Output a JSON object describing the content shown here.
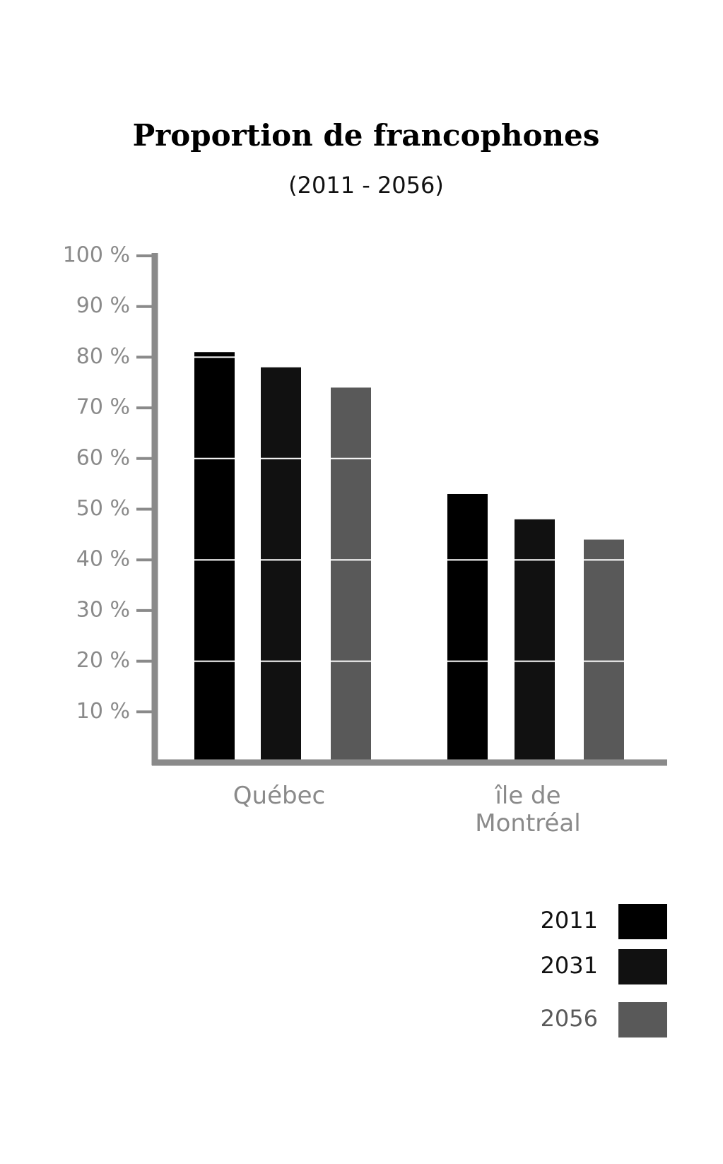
{
  "chart_data": {
    "type": "bar",
    "title": "Proportion de francophones",
    "subtitle": "(2011 - 2056)",
    "categories": [
      "Québec",
      "île de Montréal"
    ],
    "series": [
      {
        "name": "2011",
        "color": "#000000",
        "values": [
          81,
          53
        ]
      },
      {
        "name": "2031",
        "color": "#111111",
        "values": [
          78,
          48
        ]
      },
      {
        "name": "2056",
        "color": "#595959",
        "values": [
          74,
          44
        ]
      }
    ],
    "ylim": [
      0,
      100
    ],
    "yticks": [
      {
        "value": 10,
        "label": "10 %"
      },
      {
        "value": 20,
        "label": "20 %"
      },
      {
        "value": 30,
        "label": "30 %"
      },
      {
        "value": 40,
        "label": "40 %"
      },
      {
        "value": 50,
        "label": "50 %"
      },
      {
        "value": 60,
        "label": "60 %"
      },
      {
        "value": 70,
        "label": "70 %"
      },
      {
        "value": 80,
        "label": "80 %"
      },
      {
        "value": 90,
        "label": "90 %"
      },
      {
        "value": 100,
        "label": "100 %"
      }
    ],
    "gridlines": [
      20,
      40,
      60,
      80
    ],
    "grid_color": "#ffffff",
    "legend": "bottom-right"
  }
}
